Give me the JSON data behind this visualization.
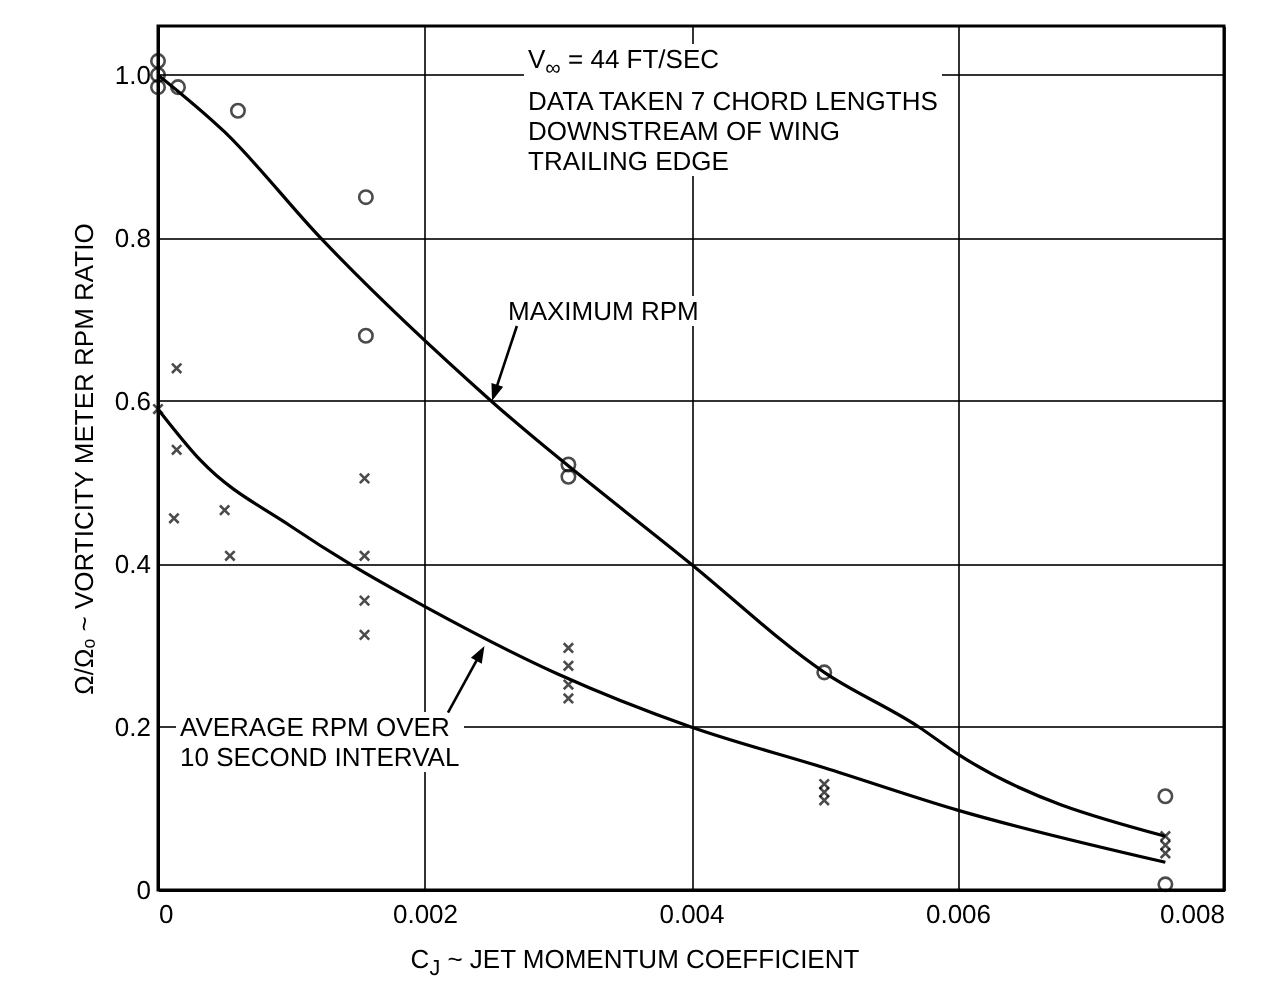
{
  "chart_data": {
    "type": "scatter",
    "xlabel": "C$_{J}$ ~ JET MOMENTUM COEFFICIENT",
    "ylabel": "Ω/Ωₒ ~ VORTICITY METER RPM RATIO",
    "xlim": [
      0,
      0.008
    ],
    "ylim": [
      0,
      1.06
    ],
    "xticks": [
      0,
      0.002,
      0.004,
      0.006,
      0.008
    ],
    "yticks": [
      0,
      0.2,
      0.4,
      0.6,
      0.8,
      {
        "value": 1,
        "label": "1.0"
      }
    ],
    "grid": true,
    "series": [
      {
        "marker": "circle",
        "color": "#000000",
        "x": [
          0,
          0,
          0,
          0.00015,
          0.0006,
          0.00156,
          0.00156,
          0.00308,
          0.00308,
          0.005,
          0.00756,
          0.00756
        ],
        "values": [
          1.017,
          1.0,
          0.985,
          0.985,
          0.956,
          0.85,
          0.68,
          0.522,
          0.507,
          0.267,
          0.115,
          0.007
        ]
      },
      {
        "marker": "cross",
        "color": "#000000",
        "x": [
          0,
          0.00014,
          0.00014,
          0.00012,
          0.0005,
          0.00054,
          0.00155,
          0.00155,
          0.00155,
          0.00155,
          0.00308,
          0.00308,
          0.00308,
          0.00308,
          0.005,
          0.005,
          0.005,
          0.00756,
          0.00756,
          0.00756
        ],
        "values": [
          0.59,
          0.64,
          0.54,
          0.456,
          0.466,
          0.41,
          0.505,
          0.41,
          0.355,
          0.313,
          0.297,
          0.275,
          0.252,
          0.235,
          0.13,
          0.12,
          0.11,
          0.066,
          0.055,
          0.045
        ]
      },
      {
        "type": "line",
        "marker": "none",
        "line_style": "solid",
        "color": "#000000",
        "x": [
          0,
          0.0005,
          0.00122,
          0.0025,
          0.004,
          0.005,
          0.00571,
          0.006,
          0.00756
        ],
        "values": [
          1.0,
          0.93,
          0.8,
          0.6,
          0.4,
          0.267,
          0.2,
          0.167,
          0.066
        ]
      },
      {
        "type": "line",
        "marker": "none",
        "line_style": "solid",
        "color": "#000000",
        "x": [
          0,
          0.00032,
          0.001,
          0.00144,
          0.002,
          0.003,
          0.004,
          0.005,
          0.006,
          0.00756
        ],
        "values": [
          0.59,
          0.527,
          0.446,
          0.4,
          0.348,
          0.265,
          0.2,
          0.15,
          0.098,
          0.034
        ]
      }
    ],
    "annotations": [
      "V$_{∞}$ = 44 FT/SEC\nDATA TAKEN 7 CHORD LENGTHS\nDOWNSTREAM OF WING\nTRAILING EDGE",
      {
        "text": "MAXIMUM RPM",
        "x": 0.0025,
        "y": 0.6
      },
      {
        "text": "AVERAGE RPM OVER\n10 SECOND INTERVAL",
        "x": 0.00245,
        "y": 0.3
      }
    ]
  }
}
